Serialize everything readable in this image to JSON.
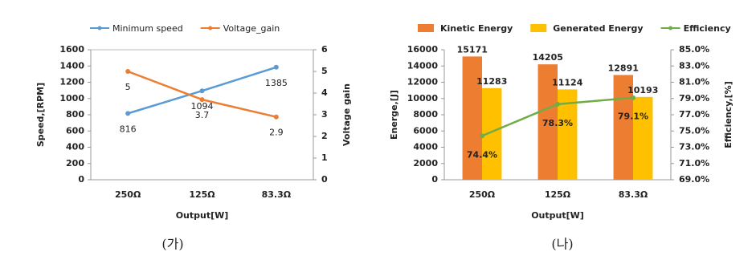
{
  "chart_data": [
    {
      "type": "line",
      "caption": "(가)",
      "x_label": "Output[W]",
      "y_label": "Speed,[RPM]",
      "y2_label": "Voltage gain",
      "categories": [
        "250Ω",
        "125Ω",
        "83.3Ω"
      ],
      "series": [
        {
          "name": "Minimum speed",
          "color": "#5b9bd5",
          "values": [
            816,
            1094,
            1385
          ]
        },
        {
          "name": "Voltage_gain",
          "color": "#ed7d31",
          "axis": "y2",
          "values": [
            5,
            3.7,
            2.9
          ]
        }
      ],
      "ylim": [
        0,
        1600
      ],
      "yticks": [
        0,
        200,
        400,
        600,
        800,
        1000,
        1200,
        1400,
        1600
      ],
      "y2lim": [
        0,
        6
      ],
      "y2ticks": [
        0,
        1,
        2,
        3,
        4,
        5,
        6
      ],
      "grid": false,
      "legend": "top"
    },
    {
      "type": "bar",
      "caption": "(나)",
      "x_label": "Output[W]",
      "y_label": "Energe,[J]",
      "y2_label": "Efficiency,[%]",
      "categories": [
        "250Ω",
        "125Ω",
        "83.3Ω"
      ],
      "series": [
        {
          "name": "Kinetic Energy",
          "color": "#ed7d31",
          "values": [
            15171,
            14205,
            12891
          ]
        },
        {
          "name": "Generated Energy",
          "color": "#ffc000",
          "values": [
            11283,
            11124,
            10193
          ]
        },
        {
          "name": "Efficiency",
          "color": "#70ad47",
          "type": "line",
          "axis": "y2",
          "values": [
            74.4,
            78.3,
            79.1
          ],
          "value_labels": [
            "74.4%",
            "78.3%",
            "79.1%"
          ]
        }
      ],
      "ylim": [
        0,
        16000
      ],
      "yticks": [
        0,
        2000,
        4000,
        6000,
        8000,
        10000,
        12000,
        14000,
        16000
      ],
      "y2lim": [
        69,
        85
      ],
      "y2ticks": [
        {
          "value": 69,
          "label": "69.0%"
        },
        {
          "value": 71,
          "label": "71.0%"
        },
        {
          "value": 73,
          "label": "73.0%"
        },
        {
          "value": 75,
          "label": "75.0%"
        },
        {
          "value": 77,
          "label": "77.0%"
        },
        {
          "value": 79,
          "label": "79.0%"
        },
        {
          "value": 81,
          "label": "81.0%"
        },
        {
          "value": 83,
          "label": "83.0%"
        },
        {
          "value": 85,
          "label": "85.0%"
        }
      ],
      "grid": false,
      "legend": "top"
    }
  ]
}
